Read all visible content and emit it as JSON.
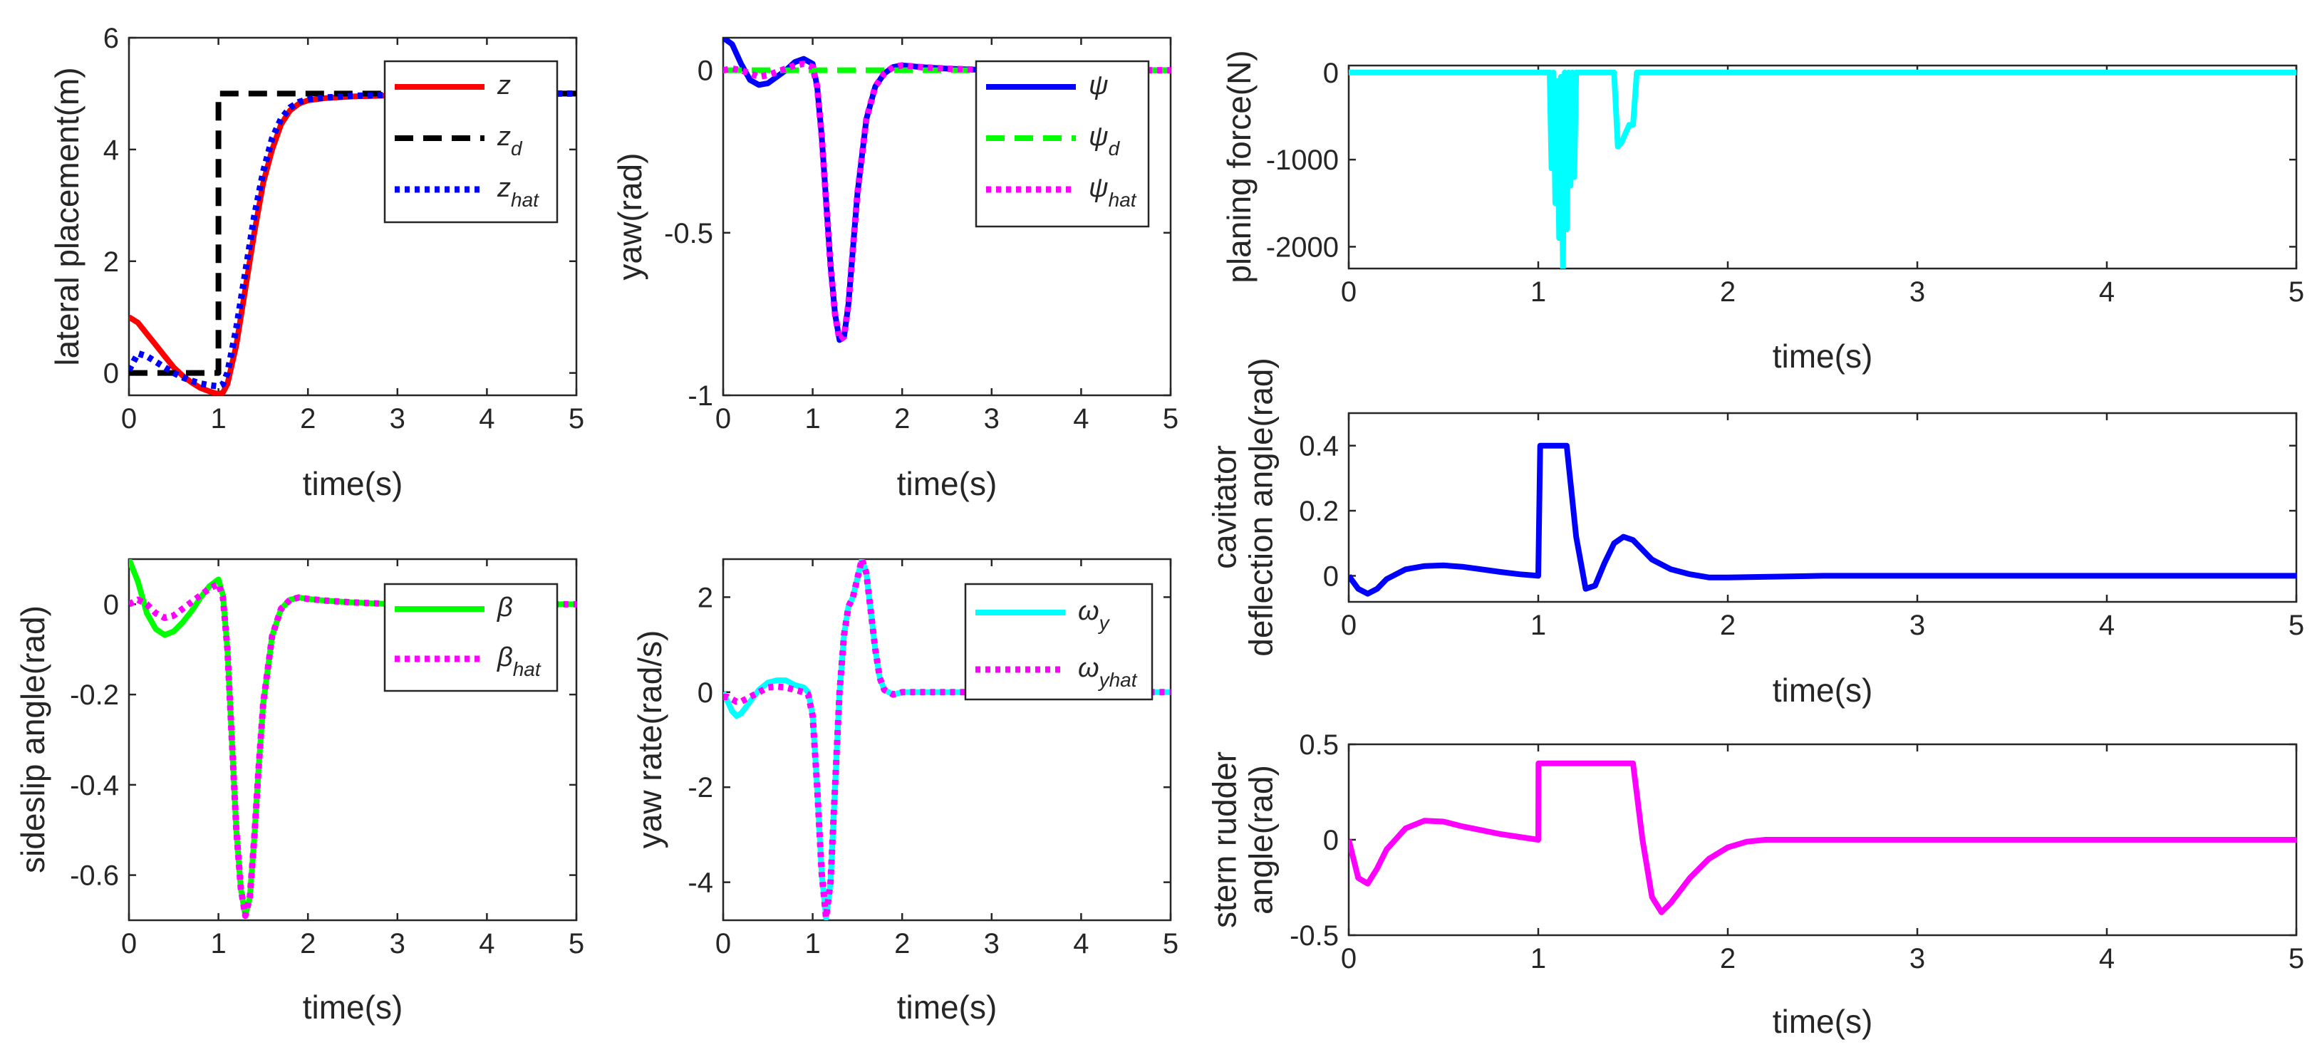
{
  "chart_data": [
    {
      "id": "lateral",
      "type": "line",
      "xlabel": "time(s)",
      "ylabel": "lateral placement(m)",
      "xlim": [
        0,
        5
      ],
      "ylim": [
        -0.4,
        6
      ],
      "xticks": [
        0,
        1,
        2,
        3,
        4,
        5
      ],
      "yticks": [
        0,
        2,
        4,
        6
      ],
      "legend_position": "top-right",
      "series": [
        {
          "name": "z",
          "legend_main": "z",
          "legend_sub": "",
          "color": "#ff0000",
          "dash": "solid",
          "x": [
            0,
            0.1,
            0.2,
            0.3,
            0.4,
            0.5,
            0.6,
            0.7,
            0.8,
            0.9,
            1.0,
            1.05,
            1.1,
            1.2,
            1.3,
            1.4,
            1.5,
            1.6,
            1.7,
            1.8,
            1.9,
            2.0,
            2.2,
            2.5,
            3,
            4,
            5
          ],
          "y": [
            1.0,
            0.9,
            0.7,
            0.5,
            0.3,
            0.1,
            -0.05,
            -0.17,
            -0.27,
            -0.33,
            -0.38,
            -0.35,
            -0.2,
            0.5,
            1.5,
            2.5,
            3.4,
            4.0,
            4.45,
            4.7,
            4.82,
            4.88,
            4.92,
            4.95,
            4.97,
            5.0,
            5.0
          ]
        },
        {
          "name": "z_d",
          "legend_main": "z",
          "legend_sub": "d",
          "color": "#000000",
          "dash": "dashed",
          "x": [
            0,
            1.0,
            1.0,
            5
          ],
          "y": [
            0,
            0,
            5,
            5
          ]
        },
        {
          "name": "z_hat",
          "legend_main": "z",
          "legend_sub": "hat",
          "color": "#0000ff",
          "dash": "dotted",
          "x": [
            0,
            0.1,
            0.2,
            0.3,
            0.4,
            0.5,
            0.6,
            0.7,
            0.8,
            0.9,
            1.0,
            1.05,
            1.1,
            1.2,
            1.3,
            1.4,
            1.5,
            1.6,
            1.7,
            1.8,
            1.9,
            2.0,
            2.2,
            2.5,
            3,
            4,
            5
          ],
          "y": [
            0.05,
            0.35,
            0.3,
            0.2,
            0.1,
            0.0,
            -0.08,
            -0.14,
            -0.19,
            -0.22,
            -0.24,
            -0.2,
            0.0,
            0.8,
            1.8,
            2.8,
            3.6,
            4.2,
            4.55,
            4.75,
            4.85,
            4.9,
            4.93,
            4.96,
            4.98,
            5.0,
            5.0
          ]
        }
      ]
    },
    {
      "id": "yaw",
      "type": "line",
      "xlabel": "time(s)",
      "ylabel": "yaw(rad)",
      "xlim": [
        0,
        5
      ],
      "ylim": [
        -1,
        0.1
      ],
      "xticks": [
        0,
        1,
        2,
        3,
        4,
        5
      ],
      "yticks": [
        -1,
        -0.5,
        0
      ],
      "legend_position": "top-right",
      "series": [
        {
          "name": "ψ",
          "legend_main": "ψ",
          "legend_sub": "",
          "color": "#0000ff",
          "dash": "solid",
          "x": [
            0,
            0.1,
            0.2,
            0.3,
            0.4,
            0.5,
            0.6,
            0.7,
            0.8,
            0.9,
            1.0,
            1.05,
            1.1,
            1.15,
            1.2,
            1.25,
            1.3,
            1.35,
            1.4,
            1.45,
            1.5,
            1.6,
            1.7,
            1.8,
            1.9,
            2.0,
            2.2,
            2.5,
            3,
            4,
            5
          ],
          "y": [
            0.1,
            0.08,
            0.02,
            -0.03,
            -0.045,
            -0.04,
            -0.02,
            0.0,
            0.025,
            0.035,
            0.02,
            -0.05,
            -0.2,
            -0.4,
            -0.6,
            -0.75,
            -0.83,
            -0.82,
            -0.72,
            -0.55,
            -0.38,
            -0.15,
            -0.05,
            -0.01,
            0.01,
            0.015,
            0.01,
            0.005,
            0.0,
            0.0,
            0.0
          ]
        },
        {
          "name": "ψ_d",
          "legend_main": "ψ",
          "legend_sub": "d",
          "color": "#00ff00",
          "dash": "dashed",
          "x": [
            0,
            5
          ],
          "y": [
            0,
            0
          ]
        },
        {
          "name": "ψ_hat",
          "legend_main": "ψ",
          "legend_sub": "hat",
          "color": "#ff00ff",
          "dash": "dotted",
          "x": [
            0,
            0.1,
            0.2,
            0.3,
            0.4,
            0.5,
            0.6,
            0.7,
            0.8,
            0.9,
            1.0,
            1.05,
            1.1,
            1.15,
            1.2,
            1.25,
            1.3,
            1.35,
            1.4,
            1.45,
            1.5,
            1.6,
            1.7,
            1.8,
            1.9,
            2.0,
            2.2,
            2.5,
            3,
            4,
            5
          ],
          "y": [
            0.0,
            0.005,
            0.0,
            -0.01,
            -0.02,
            -0.015,
            -0.005,
            0.005,
            0.015,
            0.02,
            0.01,
            -0.05,
            -0.2,
            -0.4,
            -0.6,
            -0.75,
            -0.83,
            -0.82,
            -0.72,
            -0.55,
            -0.38,
            -0.15,
            -0.05,
            -0.01,
            0.01,
            0.015,
            0.01,
            0.005,
            0.0,
            0.0,
            0.0
          ]
        }
      ]
    },
    {
      "id": "sideslip",
      "type": "line",
      "xlabel": "time(s)",
      "ylabel": "sideslip angle(rad)",
      "xlim": [
        0,
        5
      ],
      "ylim": [
        -0.7,
        0.1
      ],
      "xticks": [
        0,
        1,
        2,
        3,
        4,
        5
      ],
      "yticks": [
        -0.6,
        -0.4,
        -0.2,
        0
      ],
      "legend_position": "top-right",
      "series": [
        {
          "name": "β",
          "legend_main": "β",
          "legend_sub": "",
          "color": "#00ff00",
          "dash": "solid",
          "x": [
            0,
            0.1,
            0.2,
            0.3,
            0.4,
            0.5,
            0.6,
            0.7,
            0.8,
            0.9,
            1.0,
            1.05,
            1.1,
            1.15,
            1.2,
            1.25,
            1.3,
            1.35,
            1.4,
            1.45,
            1.5,
            1.6,
            1.7,
            1.8,
            1.9,
            2.0,
            2.2,
            2.5,
            3,
            4,
            5
          ],
          "y": [
            0.1,
            0.05,
            -0.02,
            -0.055,
            -0.068,
            -0.06,
            -0.04,
            -0.015,
            0.015,
            0.04,
            0.055,
            0.02,
            -0.1,
            -0.3,
            -0.5,
            -0.63,
            -0.69,
            -0.65,
            -0.52,
            -0.36,
            -0.22,
            -0.07,
            -0.01,
            0.01,
            0.015,
            0.012,
            0.008,
            0.004,
            0.0,
            0.0,
            0.0
          ]
        },
        {
          "name": "β_hat",
          "legend_main": "β",
          "legend_sub": "hat",
          "color": "#ff00ff",
          "dash": "dotted",
          "x": [
            0,
            0.1,
            0.2,
            0.3,
            0.4,
            0.5,
            0.6,
            0.7,
            0.8,
            0.9,
            1.0,
            1.05,
            1.1,
            1.15,
            1.2,
            1.25,
            1.3,
            1.35,
            1.4,
            1.45,
            1.5,
            1.6,
            1.7,
            1.8,
            1.9,
            2.0,
            2.2,
            2.5,
            3,
            4,
            5
          ],
          "y": [
            0.0,
            0.01,
            0.0,
            -0.02,
            -0.03,
            -0.025,
            -0.01,
            0.005,
            0.02,
            0.035,
            0.045,
            0.015,
            -0.1,
            -0.3,
            -0.5,
            -0.63,
            -0.69,
            -0.65,
            -0.52,
            -0.36,
            -0.22,
            -0.07,
            -0.01,
            0.01,
            0.015,
            0.012,
            0.008,
            0.004,
            0.0,
            0.0,
            0.0
          ]
        }
      ]
    },
    {
      "id": "yawrate",
      "type": "line",
      "xlabel": "time(s)",
      "ylabel": "yaw rate(rad/s)",
      "xlim": [
        0,
        5
      ],
      "ylim": [
        -4.8,
        2.8
      ],
      "xticks": [
        0,
        1,
        2,
        3,
        4,
        5
      ],
      "yticks": [
        -4,
        -2,
        0,
        2
      ],
      "legend_position": "top-right",
      "series": [
        {
          "name": "ω_y",
          "legend_main": "ω",
          "legend_sub": "y",
          "color": "#00ffff",
          "dash": "solid",
          "x": [
            0,
            0.05,
            0.1,
            0.15,
            0.2,
            0.3,
            0.4,
            0.5,
            0.6,
            0.7,
            0.8,
            0.9,
            0.95,
            1.0,
            1.05,
            1.1,
            1.15,
            1.2,
            1.25,
            1.3,
            1.35,
            1.4,
            1.45,
            1.5,
            1.55,
            1.6,
            1.65,
            1.7,
            1.75,
            1.8,
            1.9,
            2.0,
            2.2,
            2.5,
            3,
            4,
            5
          ],
          "y": [
            0.0,
            -0.2,
            -0.4,
            -0.5,
            -0.45,
            -0.2,
            0.05,
            0.2,
            0.25,
            0.25,
            0.15,
            0.1,
            0.0,
            -0.5,
            -2.0,
            -3.8,
            -4.75,
            -4.0,
            -2.0,
            0.0,
            1.2,
            1.8,
            2.0,
            2.4,
            2.8,
            2.5,
            1.7,
            0.9,
            0.3,
            0.05,
            -0.05,
            0.0,
            0.0,
            0.0,
            0.0,
            0.0,
            0.0
          ]
        },
        {
          "name": "ω_yhat",
          "legend_main": "ω",
          "legend_sub": "yhat",
          "color": "#ff00ff",
          "dash": "dotted",
          "x": [
            0,
            0.05,
            0.1,
            0.15,
            0.2,
            0.3,
            0.4,
            0.5,
            0.6,
            0.7,
            0.8,
            0.9,
            0.95,
            1.0,
            1.05,
            1.1,
            1.15,
            1.2,
            1.25,
            1.3,
            1.35,
            1.4,
            1.45,
            1.5,
            1.55,
            1.6,
            1.65,
            1.7,
            1.75,
            1.8,
            1.9,
            2.0,
            2.2,
            2.5,
            3,
            4,
            5
          ],
          "y": [
            -0.1,
            -0.1,
            -0.15,
            -0.2,
            -0.2,
            -0.1,
            0.0,
            0.1,
            0.12,
            0.1,
            0.05,
            0.0,
            -0.05,
            -0.5,
            -2.0,
            -3.8,
            -4.75,
            -4.0,
            -2.0,
            0.0,
            1.2,
            1.8,
            2.0,
            2.4,
            2.8,
            2.5,
            1.7,
            0.9,
            0.3,
            0.05,
            -0.05,
            0.0,
            0.0,
            0.0,
            0.0,
            0.0,
            0.0
          ]
        }
      ]
    },
    {
      "id": "planing",
      "type": "line",
      "xlabel": "time(s)",
      "ylabel": "planing force(N)",
      "xlim": [
        0,
        5
      ],
      "ylim": [
        -2250,
        80
      ],
      "xticks": [
        0,
        1,
        2,
        3,
        4,
        5
      ],
      "yticks": [
        -2000,
        -1000,
        0
      ],
      "legend_position": "none",
      "series": [
        {
          "name": "",
          "color": "#00ffff",
          "dash": "solid",
          "x": [
            0,
            1.06,
            1.07,
            1.08,
            1.09,
            1.1,
            1.11,
            1.12,
            1.13,
            1.14,
            1.15,
            1.16,
            1.17,
            1.18,
            1.19,
            1.2,
            1.21,
            1.22,
            1.3,
            1.4,
            1.42,
            1.44,
            1.46,
            1.48,
            1.5,
            1.52,
            5
          ],
          "y": [
            0,
            0,
            -1100,
            0,
            -1500,
            -100,
            -1900,
            -50,
            -2250,
            0,
            -1800,
            0,
            -1300,
            0,
            -1200,
            0,
            0,
            0,
            0,
            0,
            -850,
            -800,
            -700,
            -600,
            -600,
            0,
            0
          ]
        }
      ]
    },
    {
      "id": "cavitator",
      "type": "line",
      "xlabel": "time(s)",
      "ylabel": "cavitator deflection angle(rad)",
      "xlim": [
        0,
        5
      ],
      "ylim": [
        -0.08,
        0.5
      ],
      "xticks": [
        0,
        1,
        2,
        3,
        4,
        5
      ],
      "yticks": [
        0,
        0.2,
        0.4
      ],
      "legend_position": "none",
      "series": [
        {
          "name": "",
          "color": "#0000ff",
          "dash": "solid",
          "x": [
            0,
            0.05,
            0.1,
            0.15,
            0.2,
            0.3,
            0.4,
            0.5,
            0.6,
            0.7,
            0.8,
            0.9,
            1.0,
            1.01,
            1.15,
            1.2,
            1.25,
            1.3,
            1.35,
            1.4,
            1.45,
            1.5,
            1.55,
            1.6,
            1.7,
            1.8,
            1.9,
            2.0,
            2.5,
            3,
            4,
            5
          ],
          "y": [
            0.0,
            -0.04,
            -0.055,
            -0.04,
            -0.01,
            0.02,
            0.03,
            0.032,
            0.028,
            0.02,
            0.012,
            0.005,
            0.0,
            0.4,
            0.4,
            0.12,
            -0.04,
            -0.03,
            0.04,
            0.1,
            0.12,
            0.11,
            0.08,
            0.05,
            0.02,
            0.005,
            -0.005,
            -0.005,
            0.0,
            0.0,
            0.0,
            0.0
          ]
        }
      ]
    },
    {
      "id": "stern",
      "type": "line",
      "xlabel": "time(s)",
      "ylabel": "stern rudder angle(rad)",
      "xlim": [
        0,
        5
      ],
      "ylim": [
        -0.5,
        0.5
      ],
      "xticks": [
        0,
        1,
        2,
        3,
        4,
        5
      ],
      "yticks": [
        -0.5,
        0,
        0.5
      ],
      "legend_position": "none",
      "series": [
        {
          "name": "",
          "color": "#ff00ff",
          "dash": "solid",
          "x": [
            0,
            0.05,
            0.1,
            0.15,
            0.2,
            0.3,
            0.4,
            0.5,
            0.6,
            0.7,
            0.8,
            0.9,
            1.0,
            1.001,
            1.5,
            1.55,
            1.6,
            1.65,
            1.7,
            1.8,
            1.9,
            2.0,
            2.1,
            2.2,
            2.5,
            3,
            4,
            5
          ],
          "y": [
            0.0,
            -0.2,
            -0.23,
            -0.15,
            -0.05,
            0.06,
            0.1,
            0.095,
            0.07,
            0.05,
            0.03,
            0.015,
            0.0,
            0.4,
            0.4,
            0.0,
            -0.3,
            -0.38,
            -0.33,
            -0.2,
            -0.1,
            -0.04,
            -0.01,
            0.0,
            0.0,
            0.0,
            0.0,
            0.0
          ]
        }
      ]
    }
  ]
}
